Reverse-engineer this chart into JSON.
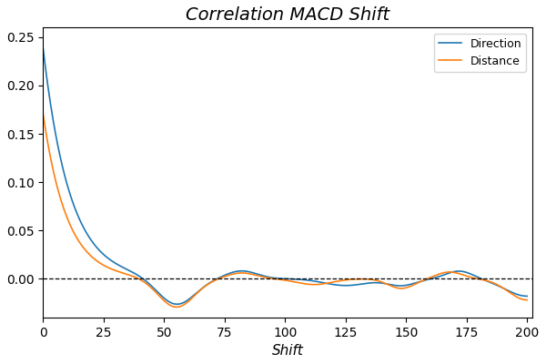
{
  "title": "Correlation MACD Shift",
  "xlabel": "Shift",
  "ylabel": "",
  "xlim": [
    0,
    202
  ],
  "ylim": [
    -0.04,
    0.26
  ],
  "yticks": [
    0.0,
    0.05,
    0.1,
    0.15,
    0.2,
    0.25
  ],
  "xticks": [
    0,
    25,
    50,
    75,
    100,
    125,
    150,
    175,
    200
  ],
  "direction_color": "#1f77b4",
  "distance_color": "#ff7f0e",
  "background_color": "#ffffff",
  "legend_labels": [
    "Direction",
    "Distance"
  ],
  "title_fontsize": 14,
  "title_style": "italic"
}
